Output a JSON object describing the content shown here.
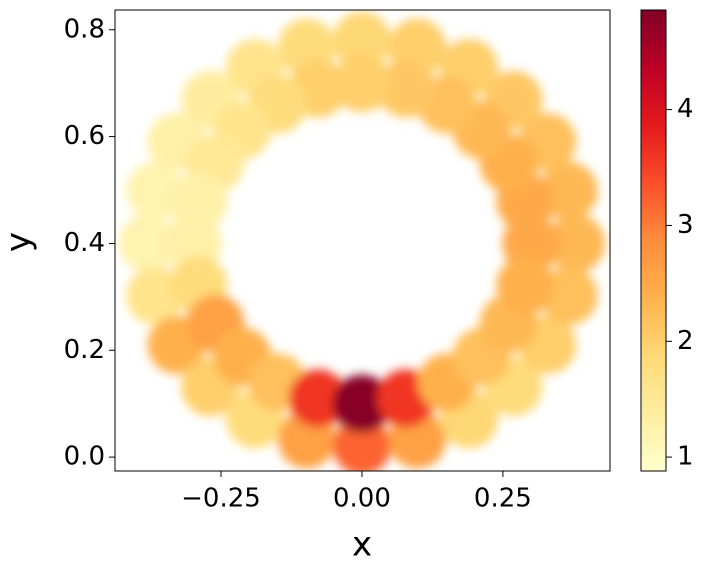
{
  "chart_data": {
    "type": "scatter",
    "x_label": "x",
    "y_label": "y",
    "xlim": [
      -0.438,
      0.44
    ],
    "ylim": [
      -0.026,
      0.837
    ],
    "xticks": [
      {
        "value": -0.25,
        "label": "−0.25"
      },
      {
        "value": 0,
        "label": "0.00"
      },
      {
        "value": 0.25,
        "label": "0.25"
      }
    ],
    "yticks": [
      {
        "value": 0,
        "label": "0.0"
      },
      {
        "value": 0.2,
        "label": "0.2"
      },
      {
        "value": 0.4,
        "label": "0.4"
      },
      {
        "value": 0.6,
        "label": "0.6"
      },
      {
        "value": 0.8,
        "label": "0.8"
      }
    ],
    "x": [
      0.38,
      0.367,
      0.329,
      0.269,
      0.19,
      0.098,
      0,
      -0.098,
      -0.19,
      -0.269,
      -0.329,
      -0.367,
      -0.38,
      -0.367,
      -0.329,
      -0.269,
      -0.19,
      -0.098,
      0,
      0.098,
      0.19,
      0.269,
      0.329,
      0.367,
      0.3,
      0.29,
      0.26,
      0.212,
      0.15,
      0.078,
      0,
      -0.078,
      -0.15,
      -0.212,
      -0.26,
      -0.29,
      -0.3,
      -0.29,
      -0.26,
      -0.212,
      -0.15,
      -0.078,
      0,
      0.078,
      0.15,
      0.212,
      0.26,
      0.29
    ],
    "y": [
      0.4,
      0.498,
      0.59,
      0.669,
      0.729,
      0.767,
      0.78,
      0.767,
      0.729,
      0.669,
      0.59,
      0.498,
      0.4,
      0.302,
      0.21,
      0.131,
      0.071,
      0.033,
      0.02,
      0.033,
      0.071,
      0.131,
      0.21,
      0.302,
      0.4,
      0.478,
      0.55,
      0.612,
      0.66,
      0.69,
      0.7,
      0.69,
      0.66,
      0.612,
      0.55,
      0.478,
      0.4,
      0.322,
      0.25,
      0.188,
      0.14,
      0.11,
      0.1,
      0.11,
      0.14,
      0.188,
      0.25,
      0.322
    ],
    "values": [
      2.3,
      2.3,
      2.2,
      2.1,
      2.0,
      2.0,
      1.9,
      1.8,
      1.6,
      1.4,
      1.3,
      1.2,
      1.2,
      1.6,
      2.4,
      2.0,
      1.8,
      2.6,
      3.2,
      2.6,
      1.9,
      1.8,
      2.0,
      2.2,
      2.5,
      2.5,
      2.4,
      2.3,
      2.2,
      2.1,
      2.0,
      2.0,
      1.8,
      1.6,
      1.5,
      1.3,
      1.3,
      1.8,
      2.6,
      2.4,
      2.2,
      3.6,
      4.8,
      3.6,
      2.4,
      2.2,
      2.3,
      2.4
    ],
    "colormap": "YlOrRd",
    "clim": [
      0.88,
      4.86
    ],
    "cticks": [
      1,
      2,
      3,
      4
    ]
  }
}
